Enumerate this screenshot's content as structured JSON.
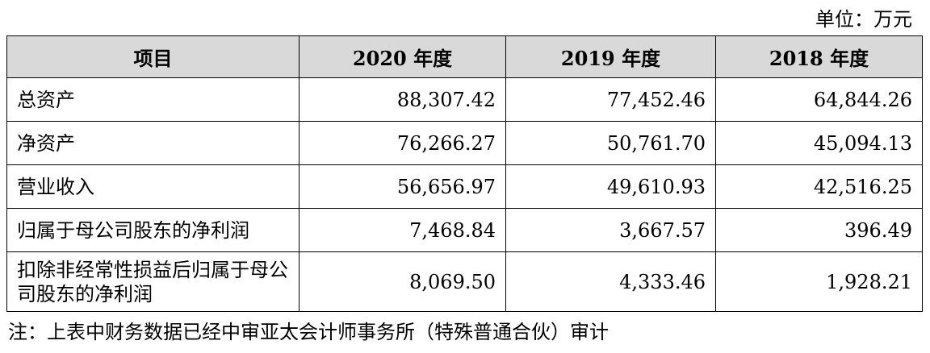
{
  "unit_label": "单位：万元",
  "table": {
    "headers": [
      "项目",
      "2020 年度",
      "2019 年度",
      "2018 年度"
    ],
    "rows": [
      {
        "label": "总资产",
        "values": [
          "88,307.42",
          "77,452.46",
          "64,844.26"
        ]
      },
      {
        "label": "净资产",
        "values": [
          "76,266.27",
          "50,761.70",
          "45,094.13"
        ]
      },
      {
        "label": "营业收入",
        "values": [
          "56,656.97",
          "49,610.93",
          "42,516.25"
        ]
      },
      {
        "label": "归属于母公司股东的净利润",
        "values": [
          "7,468.84",
          "3,667.57",
          "396.49"
        ]
      },
      {
        "label": "扣除非经常性损益后归属于母公司股东的净利润",
        "values": [
          "8,069.50",
          "4,333.46",
          "1,928.21"
        ]
      }
    ]
  },
  "note": "注：上表中财务数据已经中审亚太会计师事务所（特殊普通合伙）审计"
}
